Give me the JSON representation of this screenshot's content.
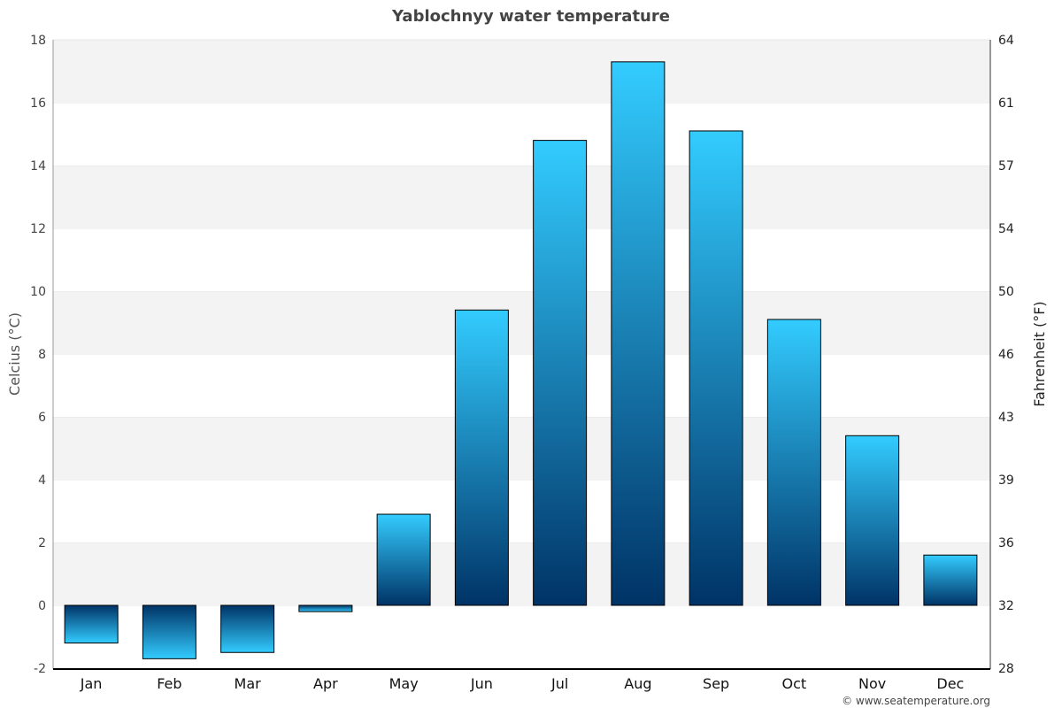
{
  "chart_data": {
    "type": "bar",
    "title": "Yablochnyy water temperature",
    "ylabel": "Celcius (°C)",
    "ylabel_right": "Fahrenheit (°F)",
    "xlabel": "",
    "categories": [
      "Jan",
      "Feb",
      "Mar",
      "Apr",
      "May",
      "Jun",
      "Jul",
      "Aug",
      "Sep",
      "Oct",
      "Nov",
      "Dec"
    ],
    "values": [
      -1.2,
      -1.7,
      -1.5,
      -0.2,
      2.9,
      9.4,
      14.8,
      17.3,
      15.1,
      9.1,
      5.4,
      1.6
    ],
    "ylim": [
      -2,
      18
    ],
    "yticks": [
      -2,
      0,
      2,
      4,
      6,
      8,
      10,
      12,
      14,
      16,
      18
    ],
    "yticks_right": [
      "28",
      "32",
      "36",
      "39",
      "43",
      "46",
      "50",
      "54",
      "57",
      "61",
      "64"
    ],
    "grid": true,
    "colors": {
      "bar_light": "#33ccff",
      "bar_dark": "#003366",
      "band": "#f3f3f3"
    }
  },
  "footer": {
    "credit": "© www.seatemperature.org"
  }
}
